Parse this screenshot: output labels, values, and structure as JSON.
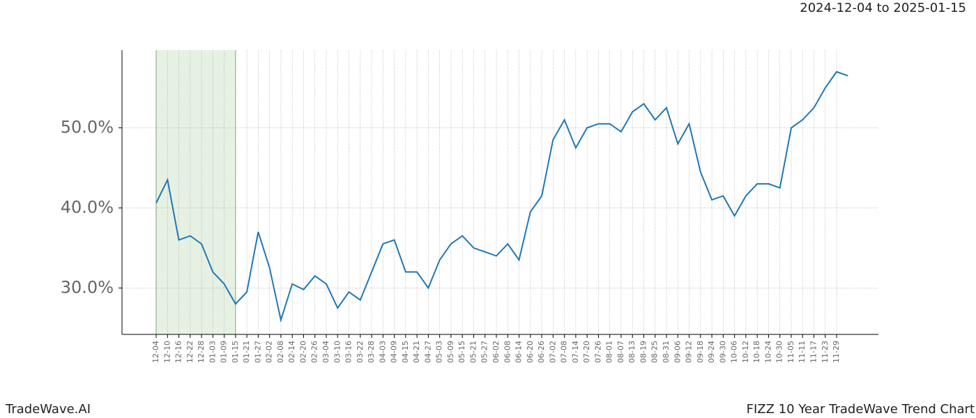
{
  "chart_data": {
    "type": "line",
    "title": "2024-12-04 to 2025-01-15",
    "brand": "TradeWave.AI",
    "subtitle": "FIZZ 10 Year TradeWave Trend Chart",
    "categories": [
      "12-04",
      "12-10",
      "12-16",
      "12-22",
      "12-28",
      "01-03",
      "01-09",
      "01-15",
      "01-21",
      "01-27",
      "02-02",
      "02-08",
      "02-14",
      "02-20",
      "02-26",
      "03-04",
      "03-10",
      "03-16",
      "03-22",
      "03-28",
      "04-03",
      "04-09",
      "04-15",
      "04-21",
      "04-27",
      "05-03",
      "05-09",
      "05-15",
      "05-21",
      "05-27",
      "06-02",
      "06-08",
      "06-14",
      "06-20",
      "06-26",
      "07-02",
      "07-08",
      "07-14",
      "07-20",
      "07-26",
      "08-01",
      "08-07",
      "08-13",
      "08-19",
      "08-25",
      "08-31",
      "09-06",
      "09-12",
      "09-18",
      "09-24",
      "09-30",
      "10-06",
      "10-12",
      "10-18",
      "10-24",
      "10-30",
      "11-05",
      "11-11",
      "11-17",
      "11-23",
      "11-29",
      null
    ],
    "series": [
      {
        "color": "#1f77b4",
        "values": [
          40.6,
          43.5,
          36,
          36.5,
          35.5,
          32,
          30.5,
          28,
          29.5,
          37,
          32.5,
          26,
          30.5,
          29.8,
          31.5,
          30.5,
          27.5,
          29.5,
          28.5,
          32,
          35.5,
          36,
          32,
          32,
          30,
          33.5,
          35.5,
          36.5,
          35,
          34.5,
          34,
          35.5,
          33.5,
          39.5,
          41.5,
          48.5,
          51,
          47.5,
          50,
          50.5,
          50.5,
          49.5,
          52,
          53,
          51,
          52.5,
          48,
          50.5,
          44.5,
          41,
          41.5,
          39,
          41.5,
          43,
          43,
          42.5,
          50,
          51,
          52.5,
          55,
          57,
          56.5
        ]
      }
    ],
    "highlight": {
      "from": "12-04",
      "to": "01-15",
      "color": "#e6f1e3"
    },
    "ylim": [
      24.2,
      59.7
    ],
    "yticks": [
      {
        "value": 30,
        "label": "30.0%"
      },
      {
        "value": 40,
        "label": "40.0%"
      },
      {
        "value": 50,
        "label": "50.0%"
      }
    ],
    "grid": true
  }
}
